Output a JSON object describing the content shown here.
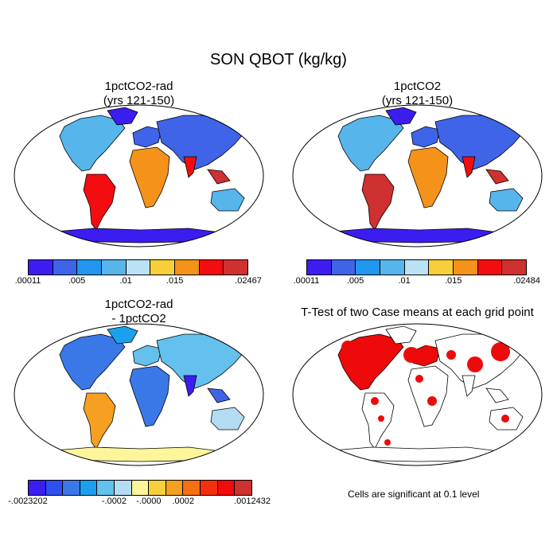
{
  "figure": {
    "title": "SON QBOT (kg/kg)"
  },
  "panels": [
    {
      "id": "p1",
      "title_line1": "1pctCO2-rad",
      "title_line2": "(yrs 121-150)",
      "colorbar_colors": [
        "#3b1df0",
        "#3f64e8",
        "#2196ee",
        "#56b6ec",
        "#b9e2f5",
        "#f7cf3a",
        "#f5921a",
        "#f30d10",
        "#cf3030"
      ],
      "tick_labels": [
        ".00011",
        ".005",
        ".01",
        ".015",
        ".02467"
      ],
      "tick_positions": [
        0,
        2,
        4,
        6,
        9
      ]
    },
    {
      "id": "p2",
      "title_line1": "1pctCO2",
      "title_line2": "(yrs 121-150)",
      "colorbar_colors": [
        "#3b1df0",
        "#3f64e8",
        "#2196ee",
        "#56b6ec",
        "#b9e2f5",
        "#f7cf3a",
        "#f5921a",
        "#f30d10",
        "#cf3030"
      ],
      "tick_labels": [
        ".00011",
        ".005",
        ".01",
        ".015",
        ".02484"
      ],
      "tick_positions": [
        0,
        2,
        4,
        6,
        9
      ]
    },
    {
      "id": "p3",
      "title_line1": "1pctCO2-rad",
      "title_line2": "- 1pctCO2",
      "colorbar_colors": [
        "#3b1df0",
        "#2f4ff0",
        "#3a78e8",
        "#1aa0ee",
        "#64c0ec",
        "#b3dcf2",
        "#fdf59a",
        "#f7cf3a",
        "#f5a020",
        "#f47012",
        "#f3300e",
        "#f20c0c",
        "#cf3030"
      ],
      "tick_labels": [
        "-.0023202",
        "-.0002",
        "-.0000",
        ".0002",
        ".0012432"
      ],
      "tick_positions": [
        0,
        5,
        7,
        9,
        13
      ]
    },
    {
      "id": "p4",
      "title_line1": "T-Test of two Case means at each grid point",
      "note": "Cells are significant at 0.1 level"
    }
  ],
  "map_colors": {
    "ocean": "#ffffff",
    "border": "#000000",
    "signif": "#ee0a0a"
  }
}
